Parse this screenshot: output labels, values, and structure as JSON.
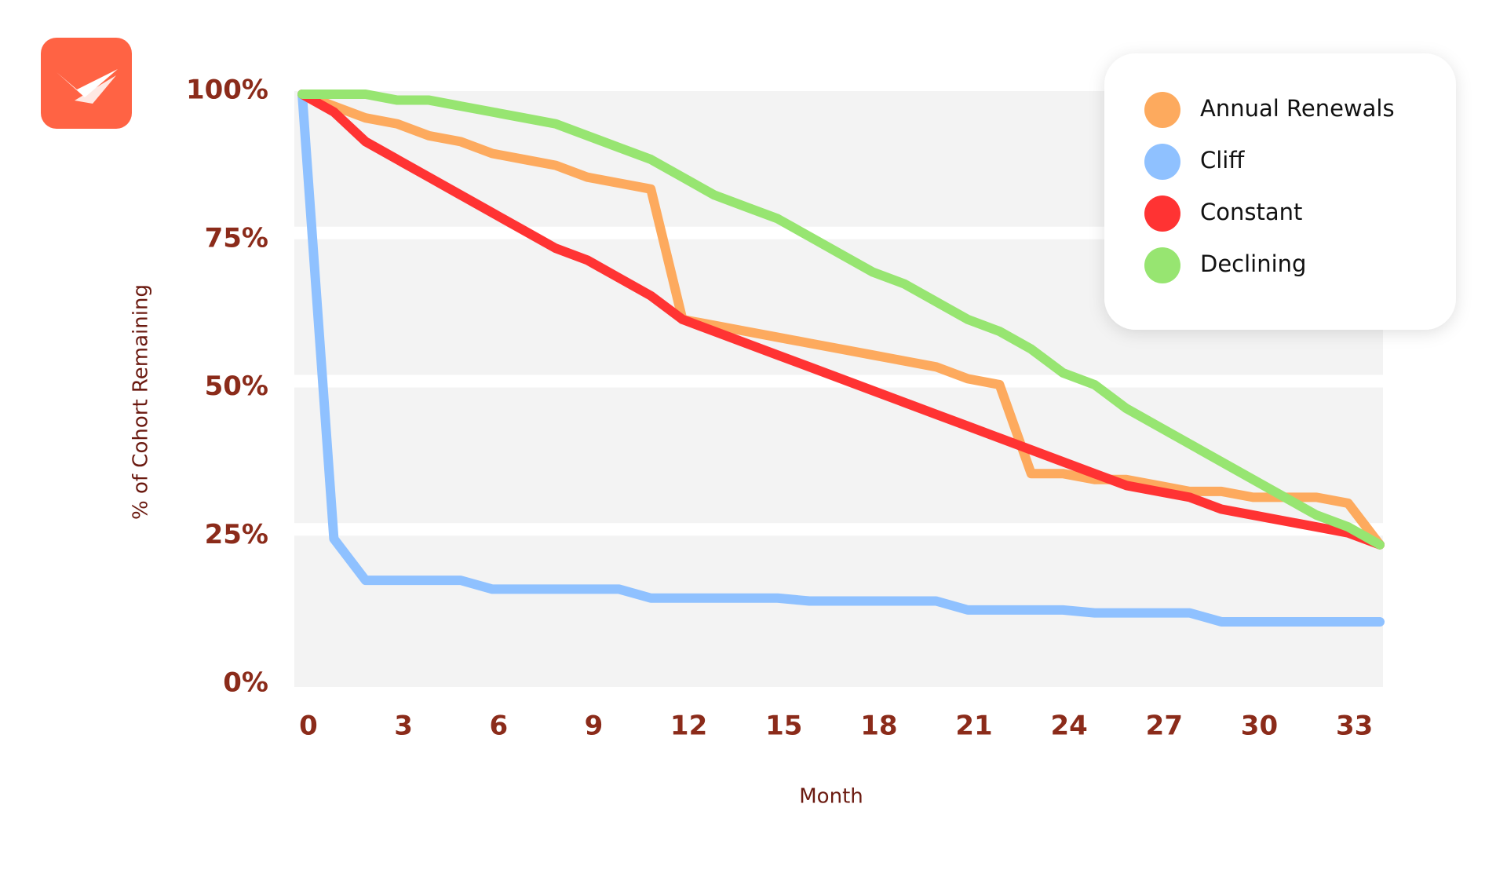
{
  "chart_data": {
    "type": "line",
    "x": [
      0,
      1,
      2,
      3,
      4,
      5,
      6,
      7,
      8,
      9,
      10,
      11,
      12,
      13,
      14,
      15,
      16,
      17,
      18,
      19,
      20,
      21,
      22,
      23,
      24,
      25,
      26,
      27,
      28,
      29,
      30,
      31,
      32,
      33,
      34
    ],
    "series": [
      {
        "name": "Annual Renewals",
        "color": "#fdaa5e",
        "values": [
          100,
          98,
          96,
          95,
          93,
          92,
          90,
          89,
          88,
          86,
          85,
          84,
          62,
          61,
          60,
          59,
          58,
          57,
          56,
          55,
          54,
          52,
          51,
          36,
          36,
          35,
          35,
          34,
          33,
          33,
          32,
          32,
          32,
          31,
          24
        ]
      },
      {
        "name": "Cliff",
        "color": "#8fc1ff",
        "values": [
          100,
          25,
          18,
          18,
          18,
          18,
          16.5,
          16.5,
          16.5,
          16.5,
          16.5,
          15,
          15,
          15,
          15,
          15,
          14.5,
          14.5,
          14.5,
          14.5,
          14.5,
          13,
          13,
          13,
          13,
          12.5,
          12.5,
          12.5,
          12.5,
          11,
          11,
          11,
          11,
          11,
          11
        ]
      },
      {
        "name": "Constant",
        "color": "#ff3333",
        "values": [
          100,
          97,
          92,
          89,
          86,
          83,
          80,
          77,
          74,
          72,
          69,
          66,
          62,
          60,
          58,
          56,
          54,
          52,
          50,
          48,
          46,
          44,
          42,
          40,
          38,
          36,
          34,
          33,
          32,
          30,
          29,
          28,
          27,
          26,
          24
        ]
      },
      {
        "name": "Declining",
        "color": "#97e571",
        "values": [
          100,
          100,
          100,
          99,
          99,
          98,
          97,
          96,
          95,
          93,
          91,
          89,
          86,
          83,
          81,
          79,
          76,
          73,
          70,
          68,
          65,
          62,
          60,
          57,
          53,
          51,
          47,
          44,
          41,
          38,
          35,
          32,
          29,
          27,
          24
        ]
      }
    ],
    "x_label": "Month",
    "y_label": "% of Cohort Remaining",
    "xlim": [
      0,
      34
    ],
    "xticks": [
      0,
      3,
      6,
      9,
      12,
      15,
      18,
      21,
      24,
      27,
      30,
      33
    ],
    "ylim": [
      0,
      100
    ],
    "yticks": [
      {
        "value": 0,
        "label": "0%"
      },
      {
        "value": 25,
        "label": "25%"
      },
      {
        "value": 50,
        "label": "50%"
      },
      {
        "value": 75,
        "label": "75%"
      },
      {
        "value": 100,
        "label": "100%"
      }
    ],
    "grid": true,
    "legend": "upper right"
  }
}
